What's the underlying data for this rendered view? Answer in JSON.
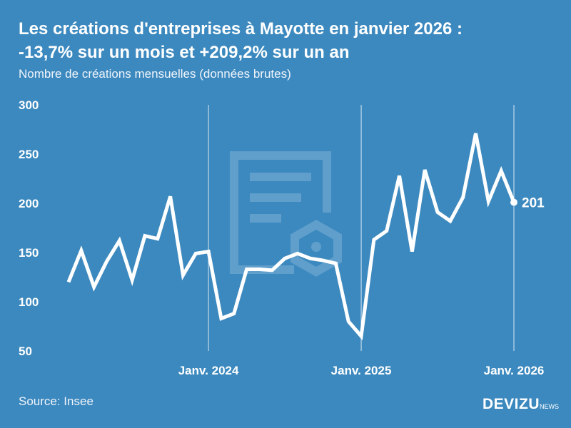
{
  "title_line1": "Les créations d'entreprises à Mayotte en janvier 2026 :",
  "title_line2": "-13,7% sur un mois et +209,2% sur un an",
  "subtitle": "Nombre de créations mensuelles (données brutes)",
  "source": "Source: Insee",
  "logo": {
    "main": "DEVIZU",
    "suffix": "NEWS"
  },
  "colors": {
    "background": "#3c89bf",
    "line": "#ffffff"
  },
  "chart_data": {
    "type": "line",
    "title": "Les créations d'entreprises à Mayotte en janvier 2026 : -13,7% sur un mois et +209,2% sur un an",
    "ylabel": "Nombre de créations mensuelles (données brutes)",
    "ylim": [
      50,
      300
    ],
    "yticks": [
      300,
      250,
      200,
      150,
      100,
      50
    ],
    "xticks": [
      {
        "label": "Janv. 2024",
        "x": "2024-01"
      },
      {
        "label": "Janv. 2025",
        "x": "2025-01"
      },
      {
        "label": "Janv. 2026",
        "x": "2026-01"
      }
    ],
    "grid": "vertical at year ticks",
    "x": [
      "2023-02",
      "2023-03",
      "2023-04",
      "2023-05",
      "2023-06",
      "2023-07",
      "2023-08",
      "2023-09",
      "2023-10",
      "2023-11",
      "2023-12",
      "2024-01",
      "2024-02",
      "2024-03",
      "2024-04",
      "2024-05",
      "2024-06",
      "2024-07",
      "2024-08",
      "2024-09",
      "2024-10",
      "2024-11",
      "2024-12",
      "2025-01",
      "2025-02",
      "2025-03",
      "2025-04",
      "2025-05",
      "2025-06",
      "2025-07",
      "2025-08",
      "2025-09",
      "2025-10",
      "2025-11",
      "2025-12",
      "2026-01"
    ],
    "values": [
      120,
      152,
      115,
      141,
      162,
      122,
      167,
      164,
      207,
      127,
      149,
      151,
      83,
      88,
      133,
      133,
      132,
      144,
      149,
      144,
      142,
      139,
      80,
      65,
      163,
      172,
      228,
      151,
      234,
      191,
      182,
      206,
      271,
      202,
      233,
      201
    ],
    "last_label": "201"
  }
}
